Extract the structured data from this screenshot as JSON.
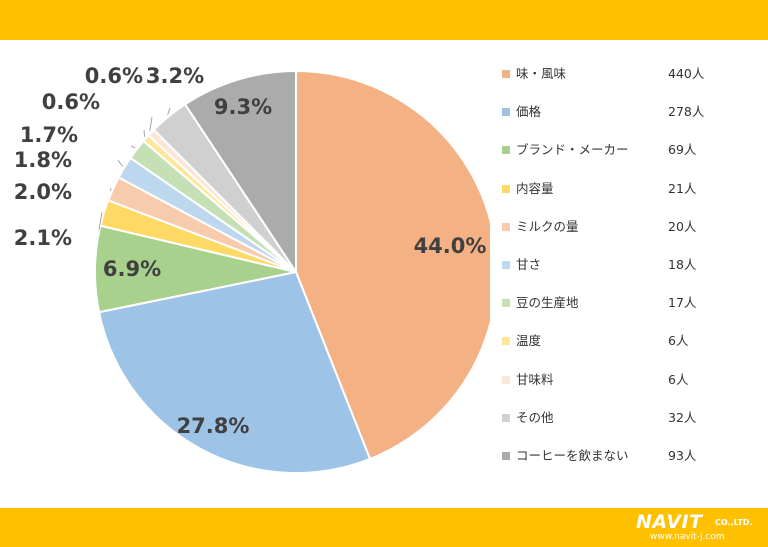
{
  "chart_data": {
    "type": "pie",
    "slices": [
      {
        "label": "味・風味",
        "count": "440人",
        "percent_label": "44.0%",
        "value": 44.0,
        "color": "#F4B183"
      },
      {
        "label": "価格",
        "count": "278人",
        "percent_label": "27.8%",
        "value": 27.8,
        "color": "#9DC3E6"
      },
      {
        "label": "ブランド・メーカー",
        "count": "69人",
        "percent_label": "6.9%",
        "value": 6.9,
        "color": "#A9D18E"
      },
      {
        "label": "内容量",
        "count": "21人",
        "percent_label": "2.1%",
        "value": 2.1,
        "color": "#FFD966"
      },
      {
        "label": "ミルクの量",
        "count": "20人",
        "percent_label": "2.0%",
        "value": 2.0,
        "color": "#F8CBAD"
      },
      {
        "label": "甘さ",
        "count": "18人",
        "percent_label": "1.8%",
        "value": 1.8,
        "color": "#BDD7EE"
      },
      {
        "label": "豆の生産地",
        "count": "17人",
        "percent_label": "1.7%",
        "value": 1.7,
        "color": "#C5E0B4"
      },
      {
        "label": "温度",
        "count": "6人",
        "percent_label": "0.6%",
        "value": 0.6,
        "color": "#FFE699"
      },
      {
        "label": "甘味料",
        "count": "6人",
        "percent_label": "0.6%",
        "value": 0.6,
        "color": "#FBE5D6"
      },
      {
        "label": "その他",
        "count": "32人",
        "percent_label": "3.2%",
        "value": 3.2,
        "color": "#D0D0D0"
      },
      {
        "label": "コーヒーを飲まない",
        "count": "93人",
        "percent_label": "9.3%",
        "value": 9.3,
        "color": "#ABABAB"
      }
    ],
    "start": "12 o'clock",
    "direction": "clockwise",
    "legend_position": "right"
  },
  "logo": {
    "name": "NAVIT",
    "company": "CO.,LTD.",
    "url": "www.navit-j.com"
  },
  "colors": {
    "banner": "#FFC000",
    "label_text": "#404040"
  }
}
